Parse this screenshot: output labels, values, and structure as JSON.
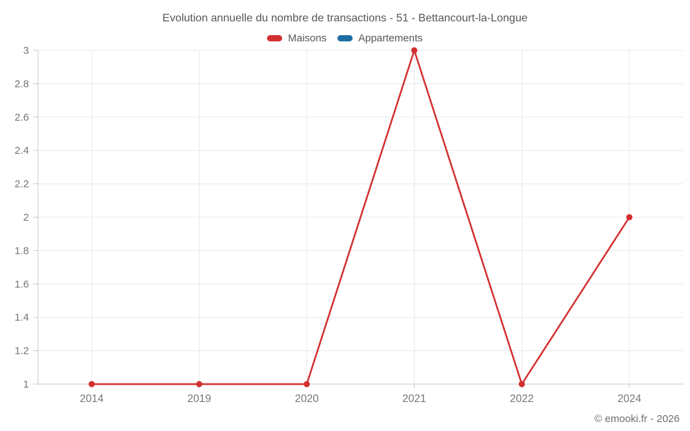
{
  "page": {
    "background": "#ffffff"
  },
  "header": {
    "title": "Evolution annuelle du nombre de transactions - 51 - Bettancourt-la-Longue"
  },
  "legend": {
    "items": [
      {
        "label": "Maisons",
        "color": "#d32f2f"
      },
      {
        "label": "Appartements",
        "color": "#1c6ea4"
      }
    ]
  },
  "footer": {
    "credit": "© emooki.fr - 2026"
  },
  "chart_data": {
    "type": "line",
    "title": "Evolution annuelle du nombre de transactions - 51 - Bettancourt-la-Longue",
    "categories": [
      "2014",
      "2019",
      "2020",
      "2021",
      "2022",
      "2024"
    ],
    "series": [
      {
        "name": "Maisons",
        "color": "#d32f2f",
        "values": [
          1,
          1,
          1,
          3,
          1,
          2
        ]
      },
      {
        "name": "Appartements",
        "color": "#1c6ea4",
        "values": []
      }
    ],
    "xlabel": "",
    "ylabel": "",
    "ylim": [
      1,
      3
    ],
    "ytick_step": 0.2,
    "ytick_labels": [
      "1",
      "1.2",
      "1.4",
      "1.6",
      "1.8",
      "2",
      "2.2",
      "2.4",
      "2.6",
      "2.8",
      "3"
    ],
    "grid": true,
    "legend_position": "top",
    "colors": {
      "gridline": "#e8e8e8",
      "axis": "#c9c9c9",
      "tick_label": "#757575"
    }
  }
}
